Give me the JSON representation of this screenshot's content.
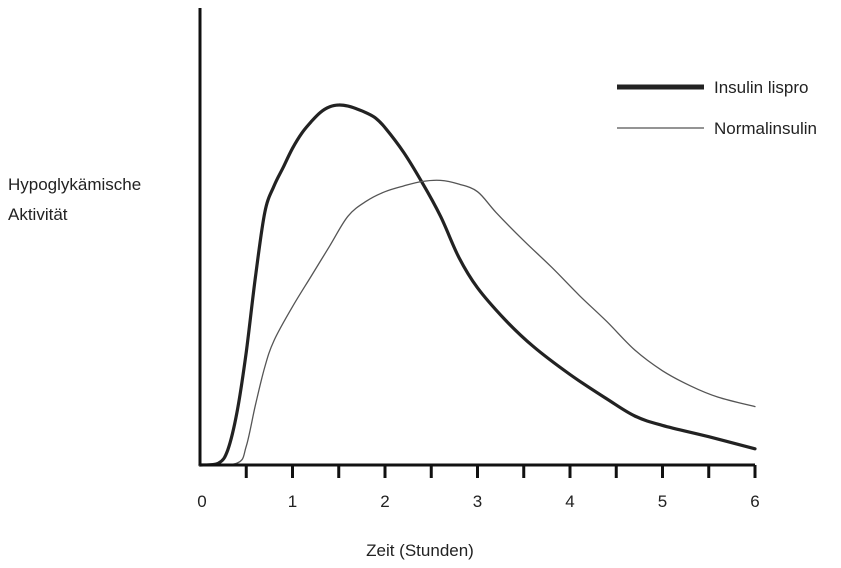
{
  "chart_data": {
    "type": "line",
    "title": "",
    "xlabel": "Zeit (Stunden)",
    "ylabel_lines": [
      "Hypoglykämische",
      "Aktivität"
    ],
    "xlim": [
      0,
      6
    ],
    "ylim": [
      0,
      1
    ],
    "x_ticks": [
      0,
      1,
      2,
      3,
      4,
      5,
      6
    ],
    "x_tick_labels": [
      "0",
      "1",
      "2",
      "3",
      "4",
      "5",
      "6"
    ],
    "x_minor_ticks": [
      0.5,
      1.5,
      2.5,
      3.5,
      4.5,
      5.5
    ],
    "y_ticks_labeled": false,
    "grid": false,
    "legend_position": "top-right",
    "colors": {
      "axis": "#111111",
      "lispro": "#222222",
      "normal": "#555555",
      "text": "#222222"
    },
    "series": [
      {
        "name": "Insulin lispro",
        "style": "thick",
        "points": [
          [
            0,
            0
          ],
          [
            0.2,
            0.005
          ],
          [
            0.3,
            0.04
          ],
          [
            0.4,
            0.14
          ],
          [
            0.5,
            0.3
          ],
          [
            0.6,
            0.5
          ],
          [
            0.7,
            0.67
          ],
          [
            0.8,
            0.74
          ],
          [
            0.9,
            0.79
          ],
          [
            1.0,
            0.84
          ],
          [
            1.1,
            0.88
          ],
          [
            1.2,
            0.91
          ],
          [
            1.3,
            0.935
          ],
          [
            1.4,
            0.95
          ],
          [
            1.5,
            0.955
          ],
          [
            1.6,
            0.952
          ],
          [
            1.7,
            0.944
          ],
          [
            1.8,
            0.934
          ],
          [
            1.9,
            0.92
          ],
          [
            2.0,
            0.895
          ],
          [
            2.2,
            0.83
          ],
          [
            2.4,
            0.75
          ],
          [
            2.6,
            0.66
          ],
          [
            2.8,
            0.55
          ],
          [
            3.0,
            0.47
          ],
          [
            3.3,
            0.385
          ],
          [
            3.6,
            0.315
          ],
          [
            4.0,
            0.24
          ],
          [
            4.4,
            0.175
          ],
          [
            4.7,
            0.13
          ],
          [
            5.0,
            0.105
          ],
          [
            5.5,
            0.075
          ],
          [
            6.0,
            0.043
          ]
        ]
      },
      {
        "name": "Normalinsulin",
        "style": "thin",
        "points": [
          [
            0,
            0
          ],
          [
            0.4,
            0.005
          ],
          [
            0.5,
            0.05
          ],
          [
            0.6,
            0.16
          ],
          [
            0.7,
            0.26
          ],
          [
            0.8,
            0.33
          ],
          [
            1.0,
            0.42
          ],
          [
            1.2,
            0.5
          ],
          [
            1.4,
            0.58
          ],
          [
            1.6,
            0.66
          ],
          [
            1.8,
            0.7
          ],
          [
            2.0,
            0.725
          ],
          [
            2.2,
            0.74
          ],
          [
            2.4,
            0.752
          ],
          [
            2.6,
            0.755
          ],
          [
            2.8,
            0.745
          ],
          [
            3.0,
            0.725
          ],
          [
            3.2,
            0.67
          ],
          [
            3.5,
            0.595
          ],
          [
            3.8,
            0.525
          ],
          [
            4.1,
            0.45
          ],
          [
            4.4,
            0.38
          ],
          [
            4.7,
            0.305
          ],
          [
            5.0,
            0.25
          ],
          [
            5.3,
            0.21
          ],
          [
            5.6,
            0.18
          ],
          [
            6.0,
            0.155
          ]
        ]
      }
    ]
  }
}
